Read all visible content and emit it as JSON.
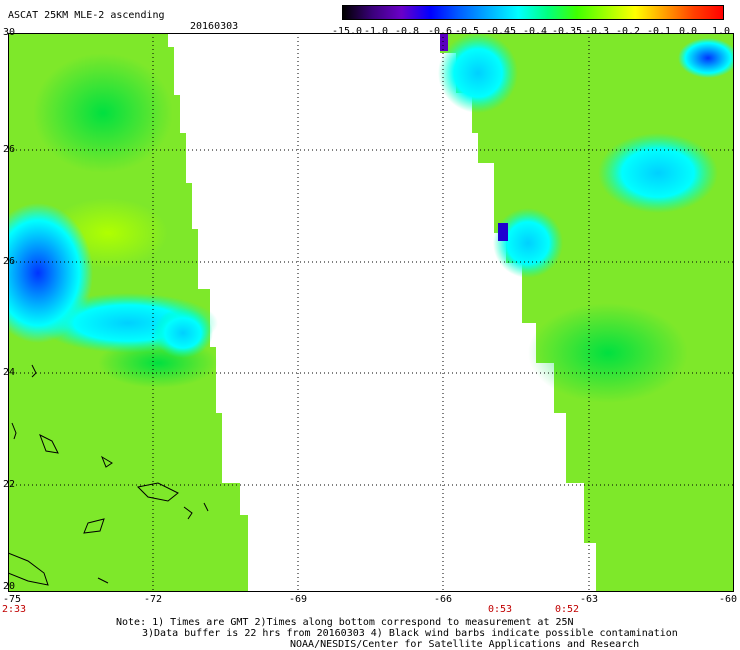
{
  "title": "ASCAT 25KM MLE-2 ascending",
  "date": "20160303",
  "colorbar": {
    "labels": [
      "-15.0",
      "-1.0",
      "-0.8",
      "-0.6",
      "-0.5",
      "-0.45",
      "-0.4",
      "-0.35",
      "-0.3",
      "-0.2",
      "-0.1",
      "0.0",
      "1.0"
    ],
    "colors": [
      "#000000",
      "#3a007a",
      "#6a00c8",
      "#0000ff",
      "#0060ff",
      "#00b0ff",
      "#00ffff",
      "#00ff80",
      "#40ff00",
      "#a0ff00",
      "#ffff00",
      "#ffa000",
      "#ff4000",
      "#ff0000"
    ]
  },
  "lat_labels": [
    "30",
    "26",
    "26",
    "24",
    "22",
    "20"
  ],
  "lon_labels": [
    "-75",
    "-72",
    "-69",
    "-66",
    "-63",
    "-60"
  ],
  "time_labels": [
    "2:33",
    "0:53",
    "0:52"
  ],
  "notes": [
    "Note: 1) Times are GMT 2)Times along bottom correspond to measurement at 25N",
    "3)Data buffer is 22 hrs from 20160303 4) Black wind barbs indicate possible contamination",
    "NOAA/NESDIS/Center for Satellite Applications and Research"
  ]
}
